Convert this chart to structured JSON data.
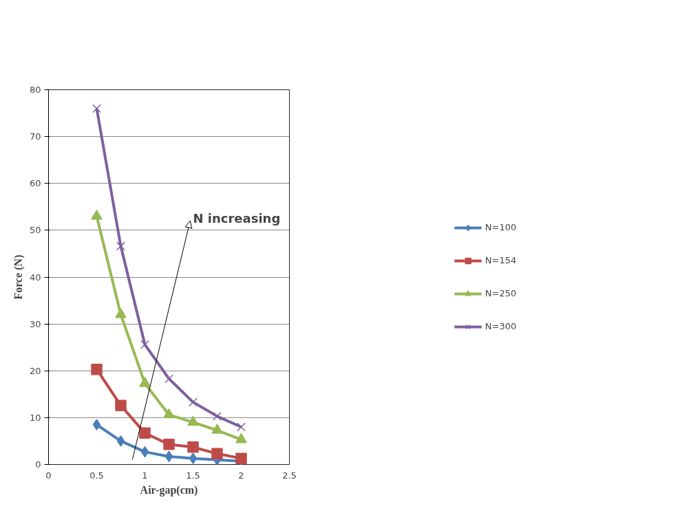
{
  "chart_data": {
    "type": "line",
    "xlabel": "Air-gap(cm)",
    "ylabel": "Force (N)",
    "x": [
      0.5,
      0.75,
      1,
      1.25,
      1.5,
      1.75,
      2
    ],
    "xlim": [
      0,
      2.5
    ],
    "xticks": [
      0,
      0.5,
      1,
      1.5,
      2,
      2.5
    ],
    "ylim": [
      0,
      80
    ],
    "yticks": [
      0,
      10,
      20,
      30,
      40,
      50,
      60,
      70,
      80
    ],
    "grid": "y",
    "legend": "right",
    "line_style": "solid",
    "annotations": [
      "N increasing"
    ],
    "series": [
      {
        "name": "N=100",
        "color": "#4a7ebb",
        "marker": "diamond",
        "values": [
          8.5,
          5,
          2.7,
          1.7,
          1.3,
          1,
          0.7
        ]
      },
      {
        "name": "N=154",
        "color": "#be4b48",
        "marker": "square",
        "values": [
          20.3,
          12.6,
          6.7,
          4.3,
          3.7,
          2.3,
          1.3
        ]
      },
      {
        "name": "N=250",
        "color": "#98b954",
        "marker": "triangle",
        "values": [
          53,
          32,
          17.3,
          10.6,
          9,
          7.3,
          5.3
        ]
      },
      {
        "name": "N=300",
        "color": "#7d60a0",
        "marker": "cross",
        "values": [
          76,
          46.6,
          25.6,
          18.3,
          13.3,
          10.3,
          8
        ]
      }
    ]
  }
}
